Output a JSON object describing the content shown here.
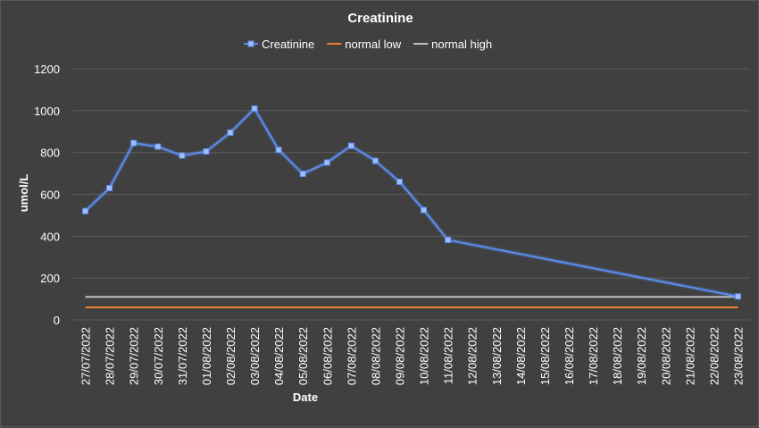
{
  "chart_data": {
    "type": "line",
    "title": "Creatinine",
    "xlabel": "Date",
    "ylabel": "umol/L",
    "ylim": [
      0,
      1200
    ],
    "yticks": [
      0,
      200,
      400,
      600,
      800,
      1000,
      1200
    ],
    "grid": true,
    "legend_position": "top",
    "categories": [
      "27/07/2022",
      "28/07/2022",
      "29/07/2022",
      "30/07/2022",
      "31/07/2022",
      "01/08/2022",
      "02/08/2022",
      "03/08/2022",
      "04/08/2022",
      "05/08/2022",
      "06/08/2022",
      "07/08/2022",
      "08/08/2022",
      "09/08/2022",
      "10/08/2022",
      "11/08/2022",
      "12/08/2022",
      "13/08/2022",
      "14/08/2022",
      "15/08/2022",
      "16/08/2022",
      "17/08/2022",
      "18/08/2022",
      "19/08/2022",
      "20/08/2022",
      "21/08/2022",
      "22/08/2022",
      "23/08/2022"
    ],
    "series": [
      {
        "name": "Creatinine",
        "color": "#5b8def",
        "marker": "square",
        "values": [
          520,
          630,
          845,
          828,
          785,
          805,
          895,
          1010,
          812,
          698,
          752,
          832,
          760,
          660,
          525,
          382,
          null,
          null,
          null,
          null,
          null,
          null,
          null,
          null,
          null,
          null,
          null,
          112
        ]
      },
      {
        "name": "normal low",
        "color": "#ed7d31",
        "constant": 60
      },
      {
        "name": "normal high",
        "color": "#bfbfbf",
        "constant": 110
      }
    ]
  }
}
